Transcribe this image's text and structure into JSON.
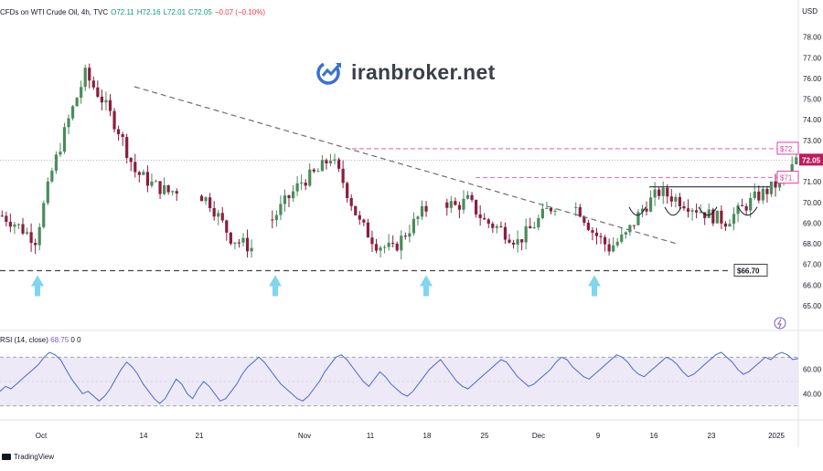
{
  "header": {
    "symbol": "CFDs on WTI Crude Oil, 4h, TVC",
    "open": "O72.11",
    "high": "H72.16",
    "low": "L72.01",
    "close": "C72.05",
    "change": "−0.07 (−0.10%)"
  },
  "currency_label": "USD",
  "watermark": {
    "text": "iranbroker.net"
  },
  "brand": {
    "text": "TradingView"
  },
  "rsi": {
    "label": "RSI (14, close)",
    "value": "68.75",
    "extra": "0 0"
  },
  "colors": {
    "up": "#4a8c5c",
    "down": "#8b1d3e",
    "trend": "#6b6e76",
    "pink": "#e040a0",
    "arrow": "#7fd6ee",
    "rsi_line": "#4a68c8",
    "rsi_band": "#ede9f7",
    "badge": "#c2185b"
  },
  "chart_data": [
    {
      "type": "candlestick",
      "title": "CFDs on WTI Crude Oil, 4h, TVC",
      "ylim": [
        65,
        79
      ],
      "yticks": [
        "78.00",
        "77.00",
        "76.00",
        "75.00",
        "74.00",
        "73.00",
        "72.00",
        "71.00",
        "70.00",
        "69.00",
        "68.00",
        "67.00",
        "66.00",
        "65.00"
      ],
      "xticks": [
        "Oct",
        "14",
        "21",
        "Nov",
        "11",
        "18",
        "25",
        "Dec",
        "9",
        "16",
        "23",
        "2025"
      ],
      "trend": [
        {
          "x": -2,
          "y": 69.6
        },
        {
          "x": 3,
          "y": 69.0
        },
        {
          "x": 8,
          "y": 68.2
        },
        {
          "x": 12,
          "y": 71.5
        },
        {
          "x": 16,
          "y": 74.0
        },
        {
          "x": 20,
          "y": 76.2
        },
        {
          "x": 24,
          "y": 75.0
        },
        {
          "x": 28,
          "y": 73.5
        },
        {
          "x": 32,
          "y": 71.5
        },
        {
          "x": 36,
          "y": 70.9
        },
        {
          "x": 40,
          "y": 70.5
        },
        {
          "x": 45,
          "y": 70.8
        },
        {
          "x": 50,
          "y": 70.0
        },
        {
          "x": 55,
          "y": 68.3
        },
        {
          "x": 60,
          "y": 67.8
        },
        {
          "x": 64,
          "y": 68.9
        },
        {
          "x": 68,
          "y": 70.0
        },
        {
          "x": 72,
          "y": 71.0
        },
        {
          "x": 76,
          "y": 71.5
        },
        {
          "x": 79,
          "y": 72.2
        },
        {
          "x": 82,
          "y": 71.0
        },
        {
          "x": 86,
          "y": 69.0
        },
        {
          "x": 90,
          "y": 68.0
        },
        {
          "x": 94,
          "y": 67.7
        },
        {
          "x": 97,
          "y": 68.5
        },
        {
          "x": 101,
          "y": 69.5
        },
        {
          "x": 105,
          "y": 70.2
        },
        {
          "x": 109,
          "y": 69.8
        },
        {
          "x": 112,
          "y": 70.1
        },
        {
          "x": 116,
          "y": 69.1
        },
        {
          "x": 120,
          "y": 68.7
        },
        {
          "x": 124,
          "y": 68.1
        },
        {
          "x": 127,
          "y": 68.7
        },
        {
          "x": 131,
          "y": 69.6
        },
        {
          "x": 135,
          "y": 70.2
        },
        {
          "x": 139,
          "y": 69.6
        },
        {
          "x": 142,
          "y": 68.6
        },
        {
          "x": 146,
          "y": 67.8
        },
        {
          "x": 150,
          "y": 68.4
        },
        {
          "x": 154,
          "y": 69.7
        },
        {
          "x": 158,
          "y": 70.5
        },
        {
          "x": 162,
          "y": 70.2
        },
        {
          "x": 166,
          "y": 69.8
        },
        {
          "x": 170,
          "y": 69.4
        },
        {
          "x": 174,
          "y": 69.1
        },
        {
          "x": 178,
          "y": 69.7
        },
        {
          "x": 181,
          "y": 70.2
        },
        {
          "x": 185,
          "y": 70.7
        },
        {
          "x": 189,
          "y": 71.3
        },
        {
          "x": 191,
          "y": 72.05
        }
      ],
      "support_level": {
        "value": 66.7,
        "label": "$66.70"
      },
      "resistance_1": {
        "value": 72.6,
        "label": "$72."
      },
      "resistance_2": {
        "value": 71.2,
        "label": "$71."
      },
      "last_price": {
        "value": 72.05,
        "label": "72.05"
      }
    },
    {
      "type": "line",
      "title": "RSI (14, close)",
      "ylim": [
        20,
        80
      ],
      "yticks": [
        "60.00",
        "40.00"
      ],
      "band": [
        30,
        70
      ],
      "values": [
        42,
        46,
        44,
        48,
        52,
        56,
        60,
        64,
        70,
        74,
        72,
        68,
        60,
        52,
        46,
        40,
        42,
        38,
        34,
        38,
        44,
        52,
        60,
        66,
        62,
        56,
        48,
        42,
        36,
        32,
        36,
        44,
        52,
        48,
        40,
        36,
        44,
        50,
        46,
        40,
        34,
        36,
        42,
        48,
        56,
        62,
        66,
        70,
        66,
        60,
        54,
        48,
        44,
        40,
        36,
        34,
        38,
        44,
        50,
        58,
        64,
        70,
        72,
        68,
        62,
        56,
        50,
        46,
        52,
        58,
        54,
        48,
        44,
        40,
        38,
        42,
        48,
        54,
        60,
        64,
        68,
        62,
        56,
        50,
        46,
        44,
        48,
        52,
        56,
        60,
        64,
        68,
        66,
        60,
        54,
        50,
        46,
        48,
        52,
        56,
        60,
        66,
        70,
        68,
        62,
        58,
        54,
        52,
        56,
        60,
        64,
        68,
        72,
        70,
        66,
        60,
        56,
        54,
        58,
        62,
        66,
        70,
        68,
        64,
        58,
        54,
        56,
        60,
        64,
        68,
        72,
        74,
        70,
        66,
        60,
        56,
        58,
        62,
        66,
        70,
        68,
        72,
        74,
        72,
        68,
        69
      ]
    }
  ]
}
